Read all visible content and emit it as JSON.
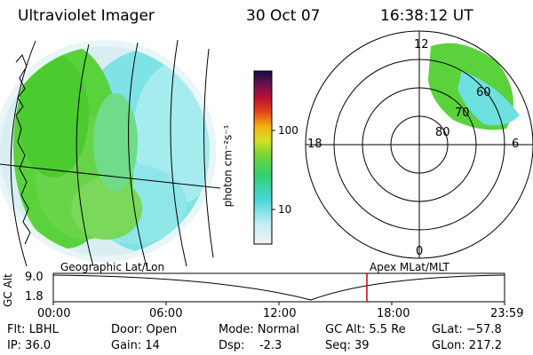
{
  "header": {
    "title": "Ultraviolet Imager",
    "date": "30 Oct 07",
    "time": "16:38:12 UT"
  },
  "colorbar": {
    "label": "photon cm⁻²s⁻¹",
    "ticks": [
      "100",
      "10"
    ]
  },
  "geo_panel": {
    "caption": "Geographic Lat/Lon"
  },
  "polar_panel": {
    "caption": "Apex MLat/MLT",
    "mlt_labels": {
      "top": "12",
      "left": "18",
      "right": "6",
      "bottom": "0"
    },
    "lat_labels": [
      "60",
      "70",
      "80"
    ]
  },
  "timeline": {
    "axis_label": "GC Alt",
    "y_ticks": [
      "9.0",
      "1.8"
    ],
    "x_ticks": [
      "00:00",
      "06:00",
      "12:00",
      "18:00",
      "23:59"
    ]
  },
  "status": {
    "flt": "Flt: LBHL",
    "ip": "IP: 36.0",
    "door": "Door: Open",
    "gain": "Gain: 14",
    "mode": "Mode: Normal",
    "dsp": "Dsp:    -2.3",
    "gc_alt": "GC Alt: 5.5 Re",
    "seq": "Seq: 39",
    "glat": "GLat: −57.8",
    "glon": "GLon: 217.2"
  },
  "colors": {
    "accent_marker": "#cc0000",
    "aurora_green": "#5ad23c",
    "aurora_cyan": "#6ee0e0"
  }
}
